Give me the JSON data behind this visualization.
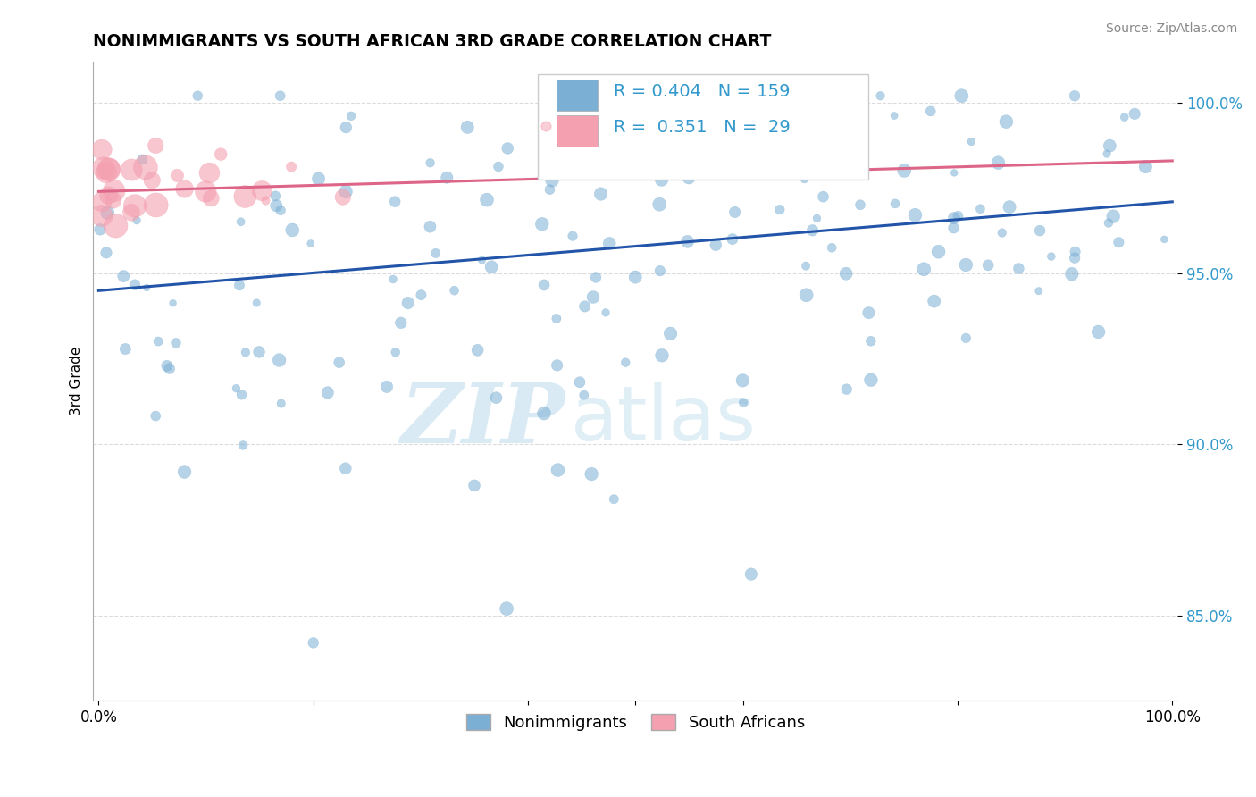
{
  "title": "NONIMMIGRANTS VS SOUTH AFRICAN 3RD GRADE CORRELATION CHART",
  "source": "Source: ZipAtlas.com",
  "ylabel": "3rd Grade",
  "legend_blue_label": "Nonimmigrants",
  "legend_pink_label": "South Africans",
  "R_blue": 0.404,
  "N_blue": 159,
  "R_pink": 0.351,
  "N_pink": 29,
  "blue_color": "#7BAFD4",
  "pink_color": "#F4A0B0",
  "blue_line_color": "#2255AA",
  "pink_line_color": "#DD6688",
  "watermark_zip": "ZIP",
  "watermark_atlas": "atlas",
  "watermark_color_zip": "#BBDAEB",
  "watermark_color_atlas": "#BBDAEB",
  "ylim_min": 0.825,
  "ylim_max": 1.012,
  "xlim_min": -0.005,
  "xlim_max": 1.005,
  "yticks": [
    0.85,
    0.9,
    0.95,
    1.0
  ],
  "ytick_labels": [
    "85.0%",
    "90.0%",
    "95.0%",
    "100.0%"
  ],
  "blue_trend_x0": 0.0,
  "blue_trend_y0": 0.945,
  "blue_trend_x1": 1.0,
  "blue_trend_y1": 0.971,
  "pink_trend_x0": 0.0,
  "pink_trend_y0": 0.974,
  "pink_trend_x1": 1.0,
  "pink_trend_y1": 0.983
}
